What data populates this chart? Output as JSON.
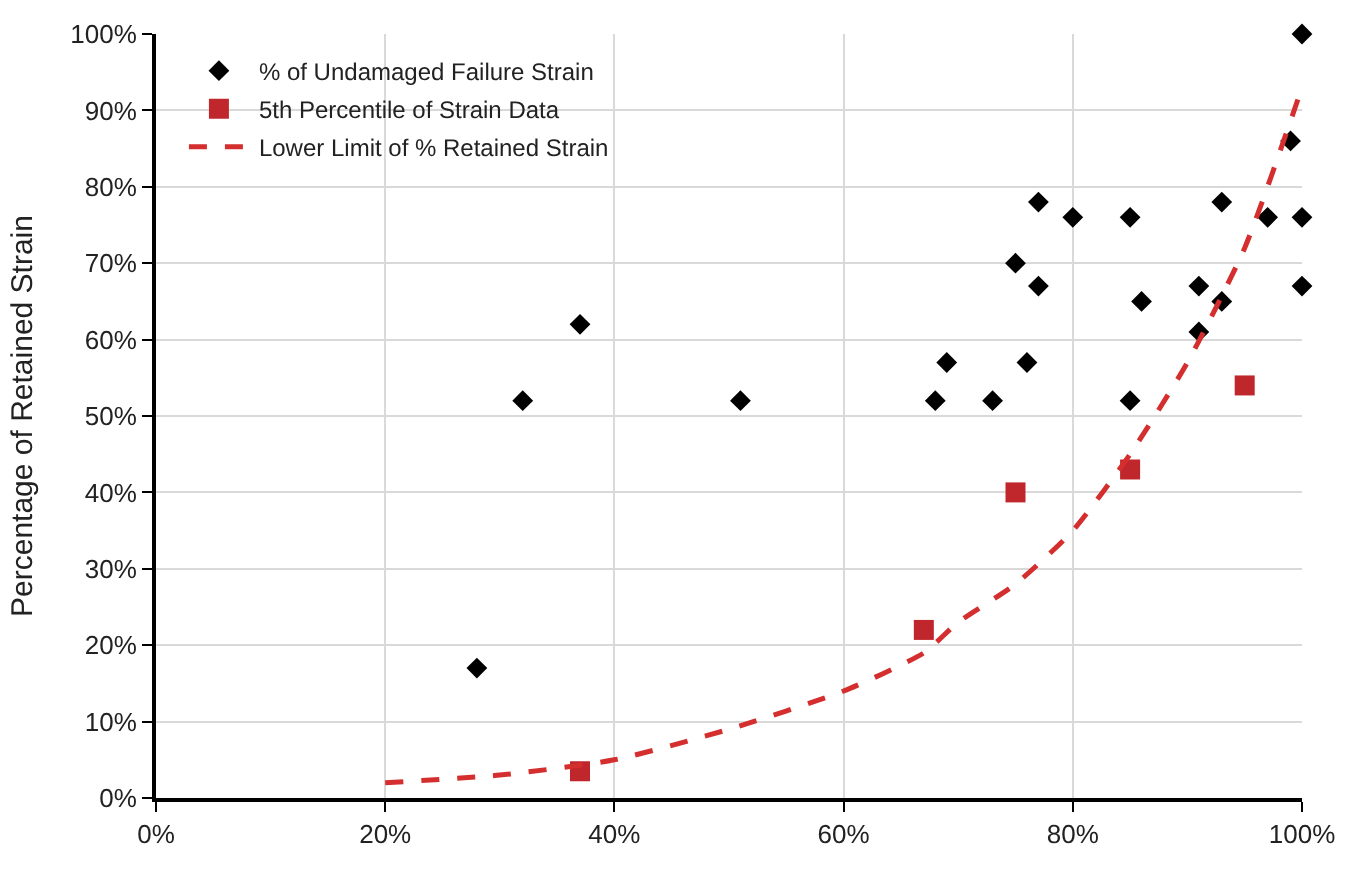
{
  "chart_data": {
    "type": "scatter",
    "ylabel": "Percentage of Retained Strain",
    "xlim": [
      0,
      100
    ],
    "ylim": [
      0,
      100
    ],
    "xticks": [
      {
        "value": 0,
        "label": "0%"
      },
      {
        "value": 20,
        "label": "20%"
      },
      {
        "value": 40,
        "label": "40%"
      },
      {
        "value": 60,
        "label": "60%"
      },
      {
        "value": 80,
        "label": "80%"
      },
      {
        "value": 100,
        "label": "100%"
      }
    ],
    "yticks": [
      {
        "value": 0,
        "label": "0%"
      },
      {
        "value": 10,
        "label": "10%"
      },
      {
        "value": 20,
        "label": "20%"
      },
      {
        "value": 30,
        "label": "30%"
      },
      {
        "value": 40,
        "label": "40%"
      },
      {
        "value": 50,
        "label": "50%"
      },
      {
        "value": 60,
        "label": "60%"
      },
      {
        "value": 70,
        "label": "70%"
      },
      {
        "value": 80,
        "label": "80%"
      },
      {
        "value": 90,
        "label": "90%"
      },
      {
        "value": 100,
        "label": "100%"
      }
    ],
    "grid": true,
    "legend": "top left",
    "series": [
      {
        "name": "% of Undamaged Failure Strain",
        "marker": "diamond",
        "color": "#000000",
        "x": [
          28,
          32,
          37,
          51,
          68,
          69,
          73,
          75,
          76,
          77,
          77,
          80,
          85,
          85,
          86,
          91,
          91,
          93,
          93,
          97,
          99,
          100,
          100,
          100
        ],
        "values": [
          17,
          52,
          62,
          52,
          52,
          57,
          52,
          70,
          57,
          78,
          67,
          76,
          76,
          52,
          65,
          67,
          61,
          78,
          65,
          76,
          86,
          100,
          76,
          67
        ]
      },
      {
        "name": "5th Percentile of Strain Data",
        "marker": "square",
        "color": "#c0272d",
        "x": [
          37,
          67,
          75,
          85,
          95
        ],
        "values": [
          3.5,
          22,
          40,
          43,
          54
        ]
      },
      {
        "name": "Lower Limit of % Retained Strain",
        "type": "line",
        "marker": "none",
        "line_style": "dashed",
        "color": "#d42e2e",
        "x": [
          20,
          30,
          40,
          50,
          60,
          67,
          70,
          75,
          80,
          85,
          90,
          95,
          100
        ],
        "values": [
          2,
          3,
          5,
          9,
          14,
          19,
          23,
          28,
          35,
          45,
          57,
          72,
          93
        ]
      }
    ]
  }
}
